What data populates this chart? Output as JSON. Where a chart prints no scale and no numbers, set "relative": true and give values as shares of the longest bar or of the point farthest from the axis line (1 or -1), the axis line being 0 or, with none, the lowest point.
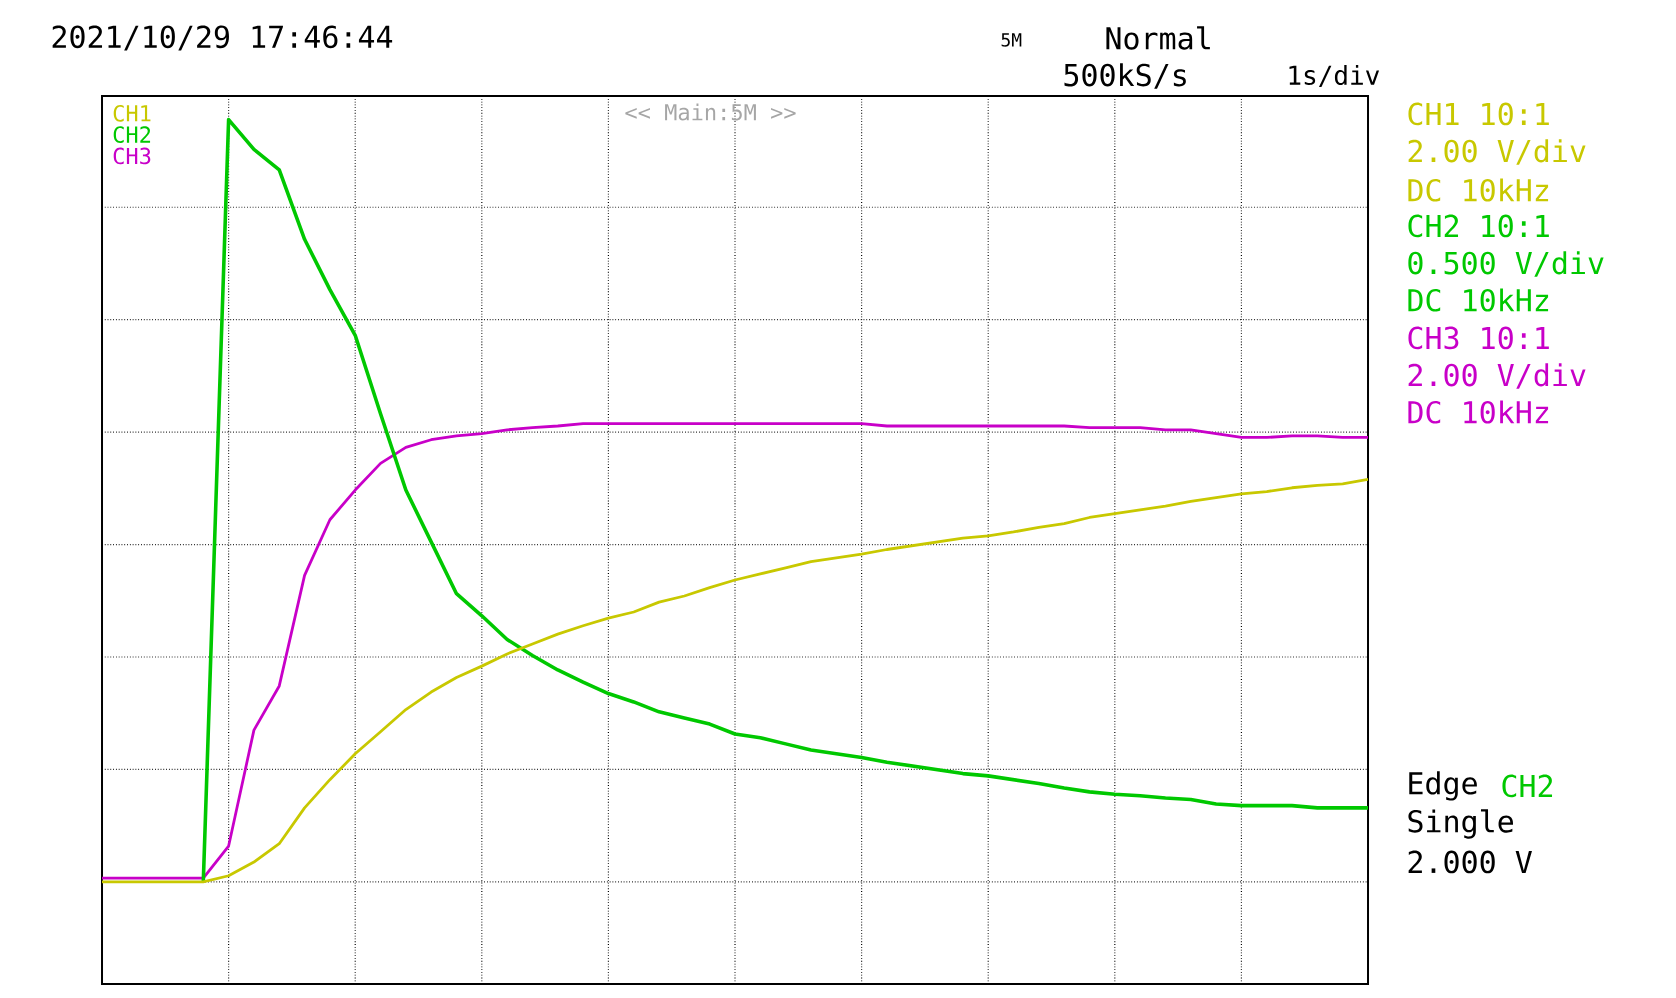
{
  "chart_data": {
    "type": "line",
    "relative": true,
    "grid": true,
    "legend": "top left",
    "marker": "none",
    "line_style": "solid",
    "categories": [
      null,
      null,
      null,
      null,
      null,
      null,
      null,
      null,
      null,
      null,
      null,
      null,
      null,
      null,
      null,
      null,
      null,
      null,
      null,
      null,
      null,
      null,
      null,
      null,
      null,
      null,
      null,
      null,
      null,
      null,
      null,
      null,
      null,
      null,
      null,
      null,
      null,
      null,
      null,
      null,
      null,
      null,
      null,
      null,
      null,
      null,
      null,
      null,
      null,
      null,
      null
    ],
    "series": [
      {
        "name": "CH1",
        "color": "#c8c800",
        "values": [
          0,
          0,
          0,
          0,
          0,
          0.008,
          0.026,
          0.05,
          0.097,
          0.134,
          0.168,
          0.197,
          0.226,
          0.249,
          0.268,
          0.283,
          0.299,
          0.312,
          0.325,
          0.336,
          0.346,
          0.354,
          0.367,
          0.375,
          0.386,
          0.396,
          0.404,
          0.412,
          0.42,
          0.425,
          0.43,
          0.436,
          0.441,
          0.446,
          0.451,
          0.454,
          0.459,
          0.465,
          0.47,
          0.478,
          0.483,
          0.488,
          0.493,
          0.499,
          0.504,
          0.509,
          0.512,
          0.517,
          0.52,
          0.522,
          0.528
        ]
      },
      {
        "name": "CH2",
        "color": "#00c800",
        "values": [
          null,
          null,
          null,
          null,
          0,
          1.0,
          0.961,
          0.934,
          0.843,
          0.777,
          0.717,
          0.614,
          0.514,
          0.446,
          0.378,
          0.349,
          0.318,
          0.297,
          0.278,
          0.262,
          0.247,
          0.236,
          0.223,
          0.215,
          0.207,
          0.194,
          0.189,
          0.181,
          0.173,
          0.168,
          0.163,
          0.157,
          0.152,
          0.147,
          0.142,
          0.139,
          0.134,
          0.129,
          0.123,
          0.118,
          0.115,
          0.113,
          0.11,
          0.108,
          0.102,
          0.1,
          0.1,
          0.1,
          0.097,
          0.097,
          0.097
        ]
      },
      {
        "name": "CH3",
        "color": "#c800c8",
        "values": [
          0.005,
          0.005,
          0.005,
          0.005,
          0.005,
          0.047,
          0.199,
          0.257,
          0.402,
          0.475,
          0.514,
          0.549,
          0.57,
          0.58,
          0.585,
          0.588,
          0.593,
          0.596,
          0.598,
          0.601,
          0.601,
          0.601,
          0.601,
          0.601,
          0.601,
          0.601,
          0.601,
          0.601,
          0.601,
          0.601,
          0.601,
          0.598,
          0.598,
          0.598,
          0.598,
          0.598,
          0.598,
          0.598,
          0.598,
          0.596,
          0.596,
          0.596,
          0.593,
          0.593,
          0.588,
          0.583,
          0.583,
          0.585,
          0.585,
          0.583,
          0.583
        ]
      }
    ],
    "annotations": [
      "2021/10/29 17:46:44",
      "5M",
      "Normal",
      "500kS/s",
      "1s/div",
      "<< Main:5M >>",
      "CH1 10:1",
      "2.00 V/div",
      "DC   10kHz",
      "CH2 10:1",
      "0.500 V/div",
      "DC   10kHz",
      "CH3 10:1",
      "2.00 V/div",
      "DC   10kHz",
      "Edge",
      "CH2",
      "Single",
      "2.000 V"
    ]
  }
}
